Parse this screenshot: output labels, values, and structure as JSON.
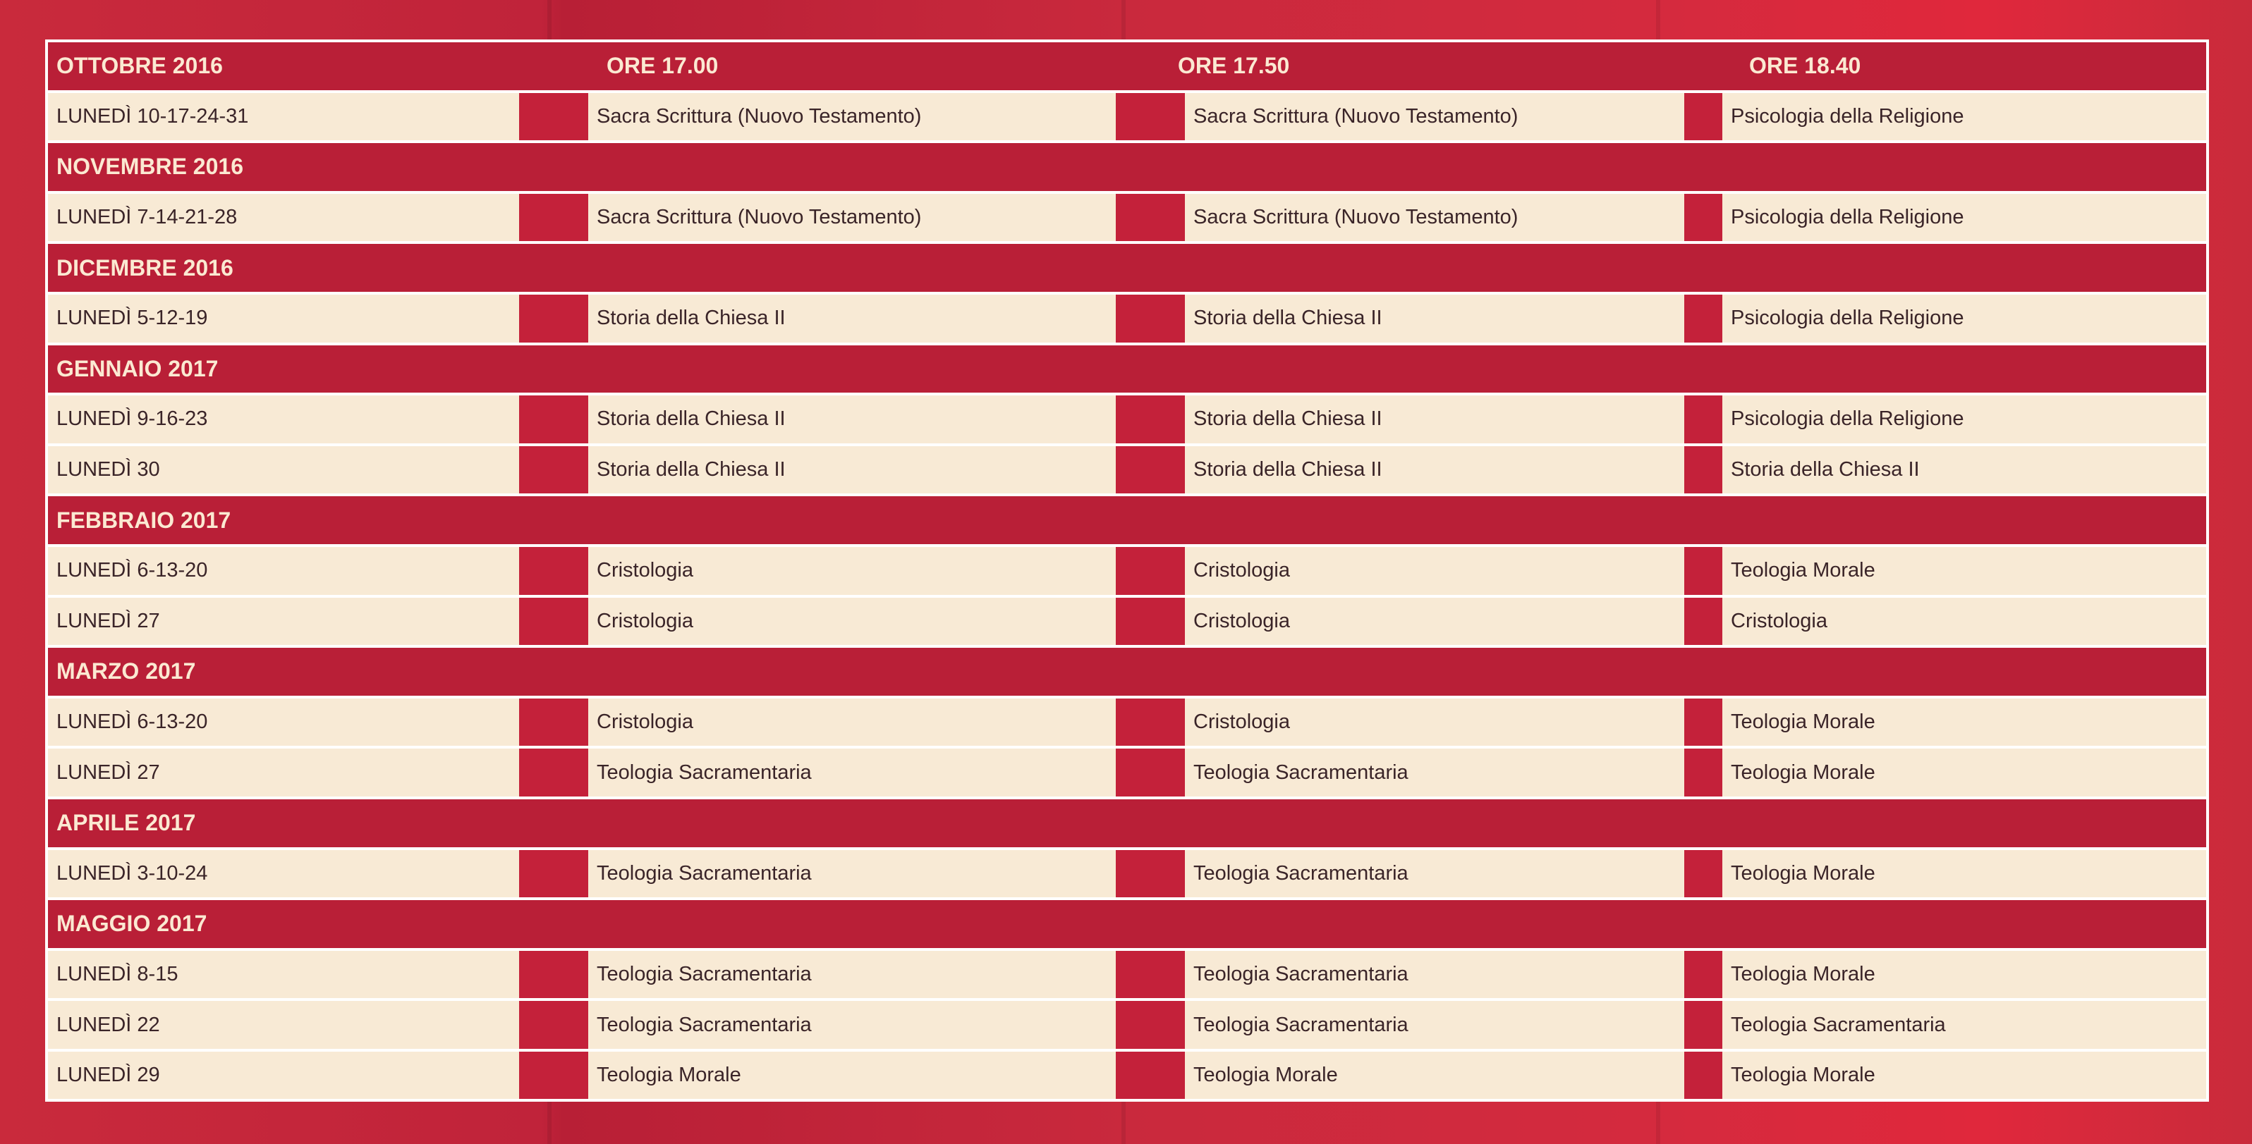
{
  "header": {
    "times": [
      "ORE 17.00",
      "ORE 17.50",
      "ORE 18.40"
    ]
  },
  "months": [
    {
      "label": "OTTOBRE 2016",
      "rows": [
        {
          "date": "LUNEDÌ 10-17-24-31",
          "slots": [
            "Sacra Scrittura (Nuovo Testamento)",
            "Sacra Scrittura (Nuovo Testamento)",
            "Psicologia della Religione"
          ]
        }
      ]
    },
    {
      "label": "NOVEMBRE 2016",
      "rows": [
        {
          "date": "LUNEDÌ 7-14-21-28",
          "slots": [
            "Sacra Scrittura (Nuovo Testamento)",
            "Sacra Scrittura (Nuovo Testamento)",
            "Psicologia della Religione"
          ]
        }
      ]
    },
    {
      "label": "DICEMBRE 2016",
      "rows": [
        {
          "date": "LUNEDÌ 5-12-19",
          "slots": [
            "Storia della Chiesa II",
            "Storia della Chiesa II",
            "Psicologia della Religione"
          ]
        }
      ]
    },
    {
      "label": "GENNAIO 2017",
      "rows": [
        {
          "date": "LUNEDÌ 9-16-23",
          "slots": [
            "Storia della Chiesa II",
            "Storia della Chiesa II",
            "Psicologia della Religione"
          ]
        },
        {
          "date": "LUNEDÌ 30",
          "slots": [
            "Storia della Chiesa II",
            "Storia della Chiesa II",
            "Storia della Chiesa II"
          ]
        }
      ]
    },
    {
      "label": "FEBBRAIO 2017",
      "rows": [
        {
          "date": "LUNEDÌ 6-13-20",
          "slots": [
            "Cristologia",
            "Cristologia",
            "Teologia Morale"
          ]
        },
        {
          "date": "LUNEDÌ 27",
          "slots": [
            "Cristologia",
            "Cristologia",
            "Cristologia"
          ]
        }
      ]
    },
    {
      "label": "MARZO 2017",
      "rows": [
        {
          "date": "LUNEDÌ 6-13-20",
          "slots": [
            "Cristologia",
            "Cristologia",
            "Teologia Morale"
          ]
        },
        {
          "date": "LUNEDÌ 27",
          "slots": [
            "Teologia Sacramentaria",
            "Teologia Sacramentaria",
            "Teologia Morale"
          ]
        }
      ]
    },
    {
      "label": "APRILE 2017",
      "rows": [
        {
          "date": "LUNEDÌ 3-10-24",
          "slots": [
            "Teologia Sacramentaria",
            "Teologia Sacramentaria",
            "Teologia Morale"
          ]
        }
      ]
    },
    {
      "label": "MAGGIO 2017",
      "rows": [
        {
          "date": "LUNEDÌ 8-15",
          "slots": [
            "Teologia Sacramentaria",
            "Teologia Sacramentaria",
            "Teologia Morale"
          ]
        },
        {
          "date": "LUNEDÌ 22",
          "slots": [
            "Teologia Sacramentaria",
            "Teologia Sacramentaria",
            "Teologia Sacramentaria"
          ]
        },
        {
          "date": "LUNEDÌ 29",
          "slots": [
            "Teologia Morale",
            "Teologia Morale",
            "Teologia Morale"
          ]
        }
      ]
    }
  ]
}
